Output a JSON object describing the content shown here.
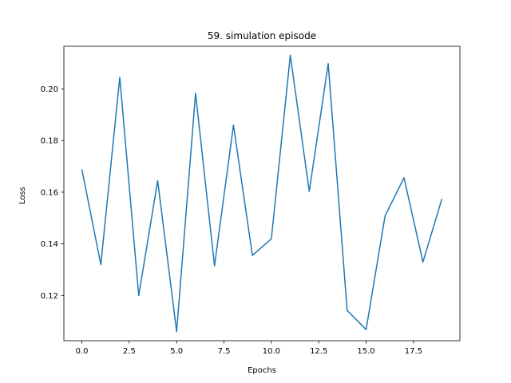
{
  "chart_data": {
    "type": "line",
    "title": "59. simulation episode",
    "xlabel": "Epochs",
    "ylabel": "Loss",
    "xlim": [
      -0.95,
      19.95
    ],
    "ylim": [
      0.1025,
      0.2165
    ],
    "xticks": [
      0.0,
      2.5,
      5.0,
      7.5,
      10.0,
      12.5,
      15.0,
      17.5
    ],
    "xtick_labels": [
      "0.0",
      "2.5",
      "5.0",
      "7.5",
      "10.0",
      "12.5",
      "15.0",
      "17.5"
    ],
    "yticks": [
      0.12,
      0.14,
      0.16,
      0.18,
      0.2
    ],
    "ytick_labels": [
      "0.12",
      "0.14",
      "0.16",
      "0.18",
      "0.20"
    ],
    "grid": false,
    "line_color": "#1f77b4",
    "series": [
      {
        "x": [
          0,
          1,
          2,
          3,
          4,
          5,
          6,
          7,
          8,
          9,
          10,
          11,
          12,
          13,
          14,
          15,
          16,
          17,
          18,
          19
        ],
        "values": [
          0.1688,
          0.132,
          0.2045,
          0.12,
          0.1645,
          0.106,
          0.1983,
          0.1315,
          0.186,
          0.1355,
          0.142,
          0.213,
          0.1603,
          0.2098,
          0.1142,
          0.1068,
          0.1508,
          0.1656,
          0.133,
          0.1574
        ]
      }
    ]
  }
}
